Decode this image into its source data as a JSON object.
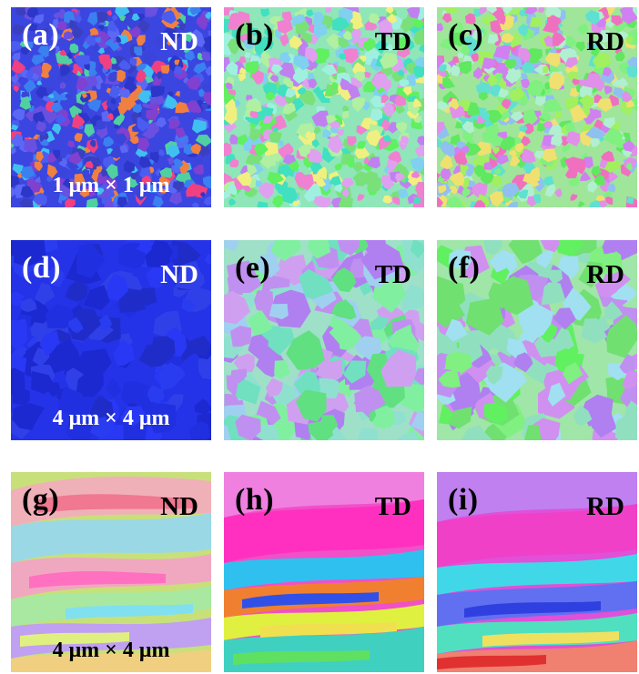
{
  "panels": [
    {
      "label": "(a)",
      "direction": "ND",
      "scale": "1 μm × 1 μm"
    },
    {
      "label": "(b)",
      "direction": "TD"
    },
    {
      "label": "(c)",
      "direction": "RD"
    },
    {
      "label": "(d)",
      "direction": "ND",
      "scale": "4 μm × 4 μm"
    },
    {
      "label": "(e)",
      "direction": "TD"
    },
    {
      "label": "(f)",
      "direction": "RD"
    },
    {
      "label": "(g)",
      "direction": "ND",
      "scale": "4 μm × 4 μm"
    },
    {
      "label": "(h)",
      "direction": "TD"
    },
    {
      "label": "(i)",
      "direction": "RD"
    }
  ]
}
